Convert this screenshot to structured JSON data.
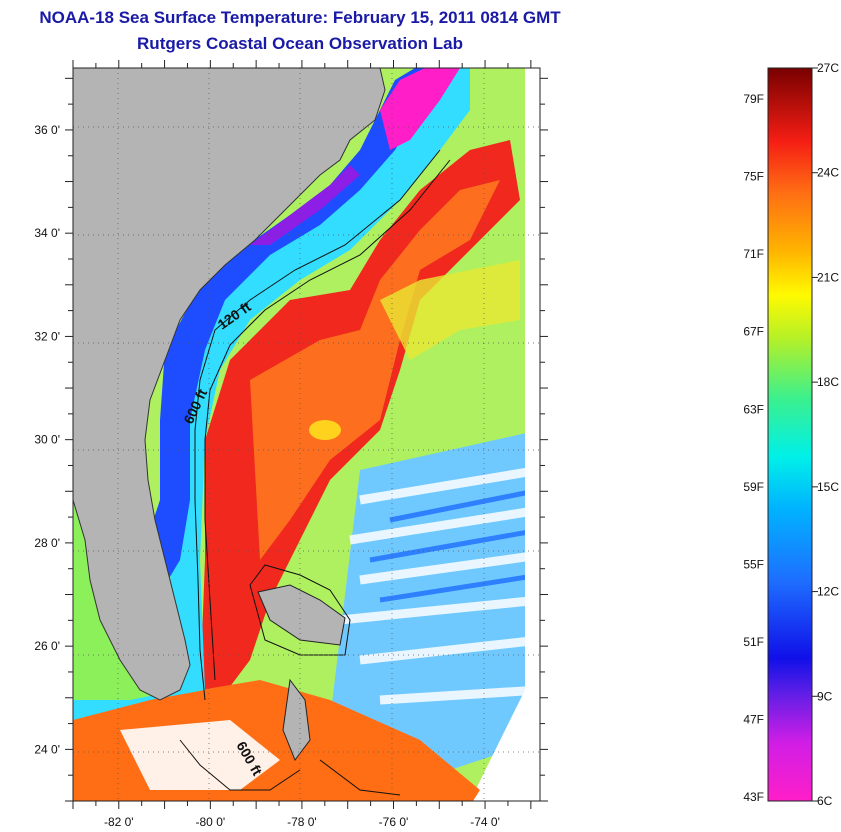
{
  "header": {
    "title": "NOAA-18 Sea Surface Temperature:  February 15, 2011 0814 GMT",
    "subtitle": "Rutgers Coastal Ocean Observation Lab"
  },
  "map": {
    "lat_labels": [
      "36 0'",
      "34 0'",
      "32 0'",
      "30 0'",
      "28 0'",
      "26 0'",
      "24 0'"
    ],
    "lat_values": [
      36,
      34,
      32,
      30,
      28,
      26,
      24
    ],
    "lon_labels": [
      "-82 0'",
      "-80 0'",
      "-78 0'",
      "-76 0'",
      "-74 0'"
    ],
    "lon_values": [
      -82,
      -80,
      -78,
      -76,
      -74
    ],
    "lat_range": [
      23,
      37.2
    ],
    "lon_range": [
      -83,
      -72.8
    ],
    "contour_labels": [
      "120 ft",
      "600 ft",
      "600 ft"
    ],
    "colors": {
      "land": "#b4b4b4",
      "stream": "#f0281e",
      "shelf": "#1e4dff"
    }
  },
  "colorbar": {
    "f_labels": [
      "79F",
      "75F",
      "71F",
      "67F",
      "63F",
      "59F",
      "55F",
      "51F",
      "47F",
      "43F"
    ],
    "f_values": [
      79,
      75,
      71,
      67,
      63,
      59,
      55,
      51,
      47,
      43
    ],
    "c_labels": [
      "27C",
      "24C",
      "21C",
      "18C",
      "15C",
      "12C",
      "9C",
      "6C"
    ],
    "c_values": [
      27,
      24,
      21,
      18,
      15,
      12,
      9,
      6
    ],
    "range_c": [
      6,
      27
    ]
  }
}
